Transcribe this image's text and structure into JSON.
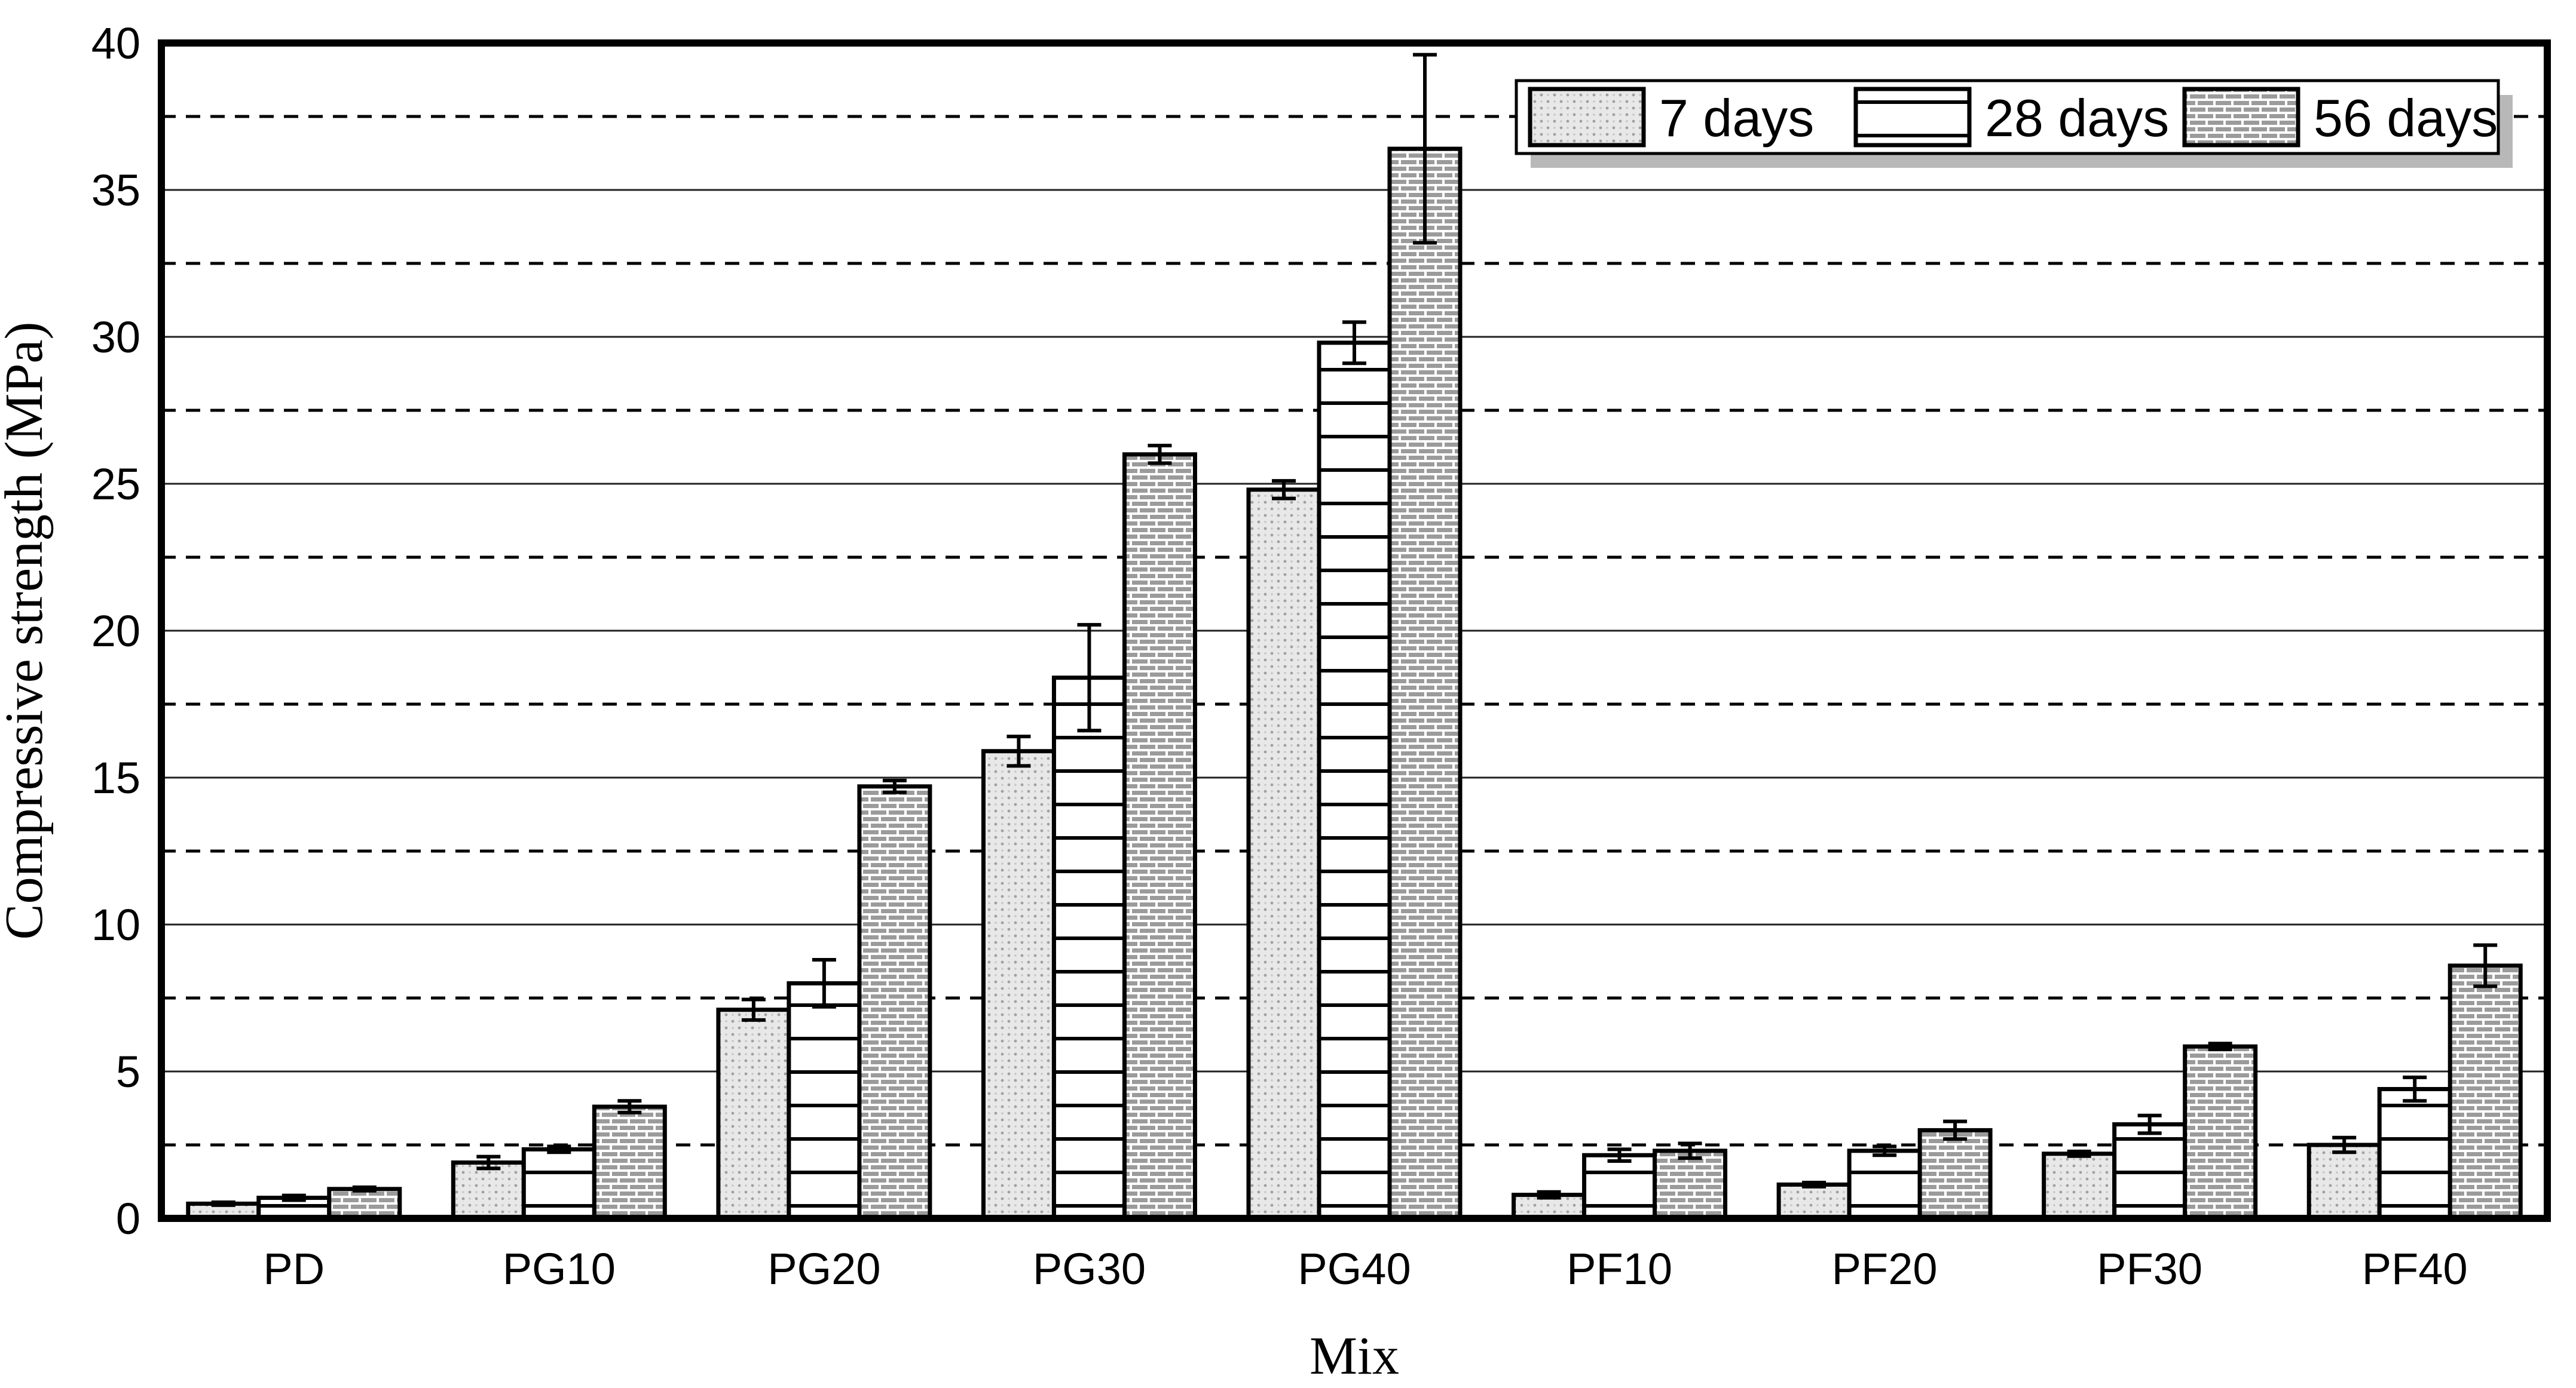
{
  "chart_data": {
    "type": "bar",
    "title": "",
    "xlabel": "Mix",
    "ylabel": "Compressive strength (MPa)",
    "ylim": [
      0,
      40
    ],
    "yticks": [
      0,
      5,
      10,
      15,
      20,
      25,
      30,
      35,
      40
    ],
    "minor_grid_step": 2.5,
    "grid": "major-solid, minor-dashed",
    "legend_position": "top-right",
    "categories": [
      "PD",
      "PG10",
      "PG20",
      "PG30",
      "PG40",
      "PF10",
      "PF20",
      "PF30",
      "PF40"
    ],
    "series": [
      {
        "name": "7 days",
        "pattern": "dots",
        "values": [
          0.5,
          1.9,
          7.1,
          15.9,
          24.8,
          0.8,
          1.15,
          2.2,
          2.5
        ],
        "errors": [
          0.05,
          0.2,
          0.35,
          0.5,
          0.3,
          0.1,
          0.07,
          0.08,
          0.25
        ]
      },
      {
        "name": "28 days",
        "pattern": "hlines",
        "values": [
          0.7,
          2.35,
          8.0,
          18.4,
          29.8,
          2.15,
          2.3,
          3.2,
          4.4
        ],
        "errors": [
          0.08,
          0.1,
          0.8,
          1.8,
          0.7,
          0.2,
          0.15,
          0.3,
          0.4
        ]
      },
      {
        "name": "56 days",
        "pattern": "brick",
        "values": [
          1.0,
          3.8,
          14.7,
          26.0,
          36.4,
          2.3,
          3.0,
          5.85,
          8.6
        ],
        "errors": [
          0.06,
          0.2,
          0.2,
          0.3,
          3.2,
          0.25,
          0.3,
          0.1,
          0.7
        ]
      }
    ]
  },
  "colors": {
    "bar_outline": "#000000",
    "dots_bg": "#e8e8e8",
    "dots_fg": "#a0a0a0",
    "hlines_bg": "#ffffff",
    "hlines_fg": "#000000",
    "brick_bg": "#9b9b9b",
    "brick_mortar": "#ffffff",
    "grid_major": "#222222",
    "grid_minor": "#000000",
    "legend_shadow": "#b8b8b8",
    "text": "#000000"
  }
}
